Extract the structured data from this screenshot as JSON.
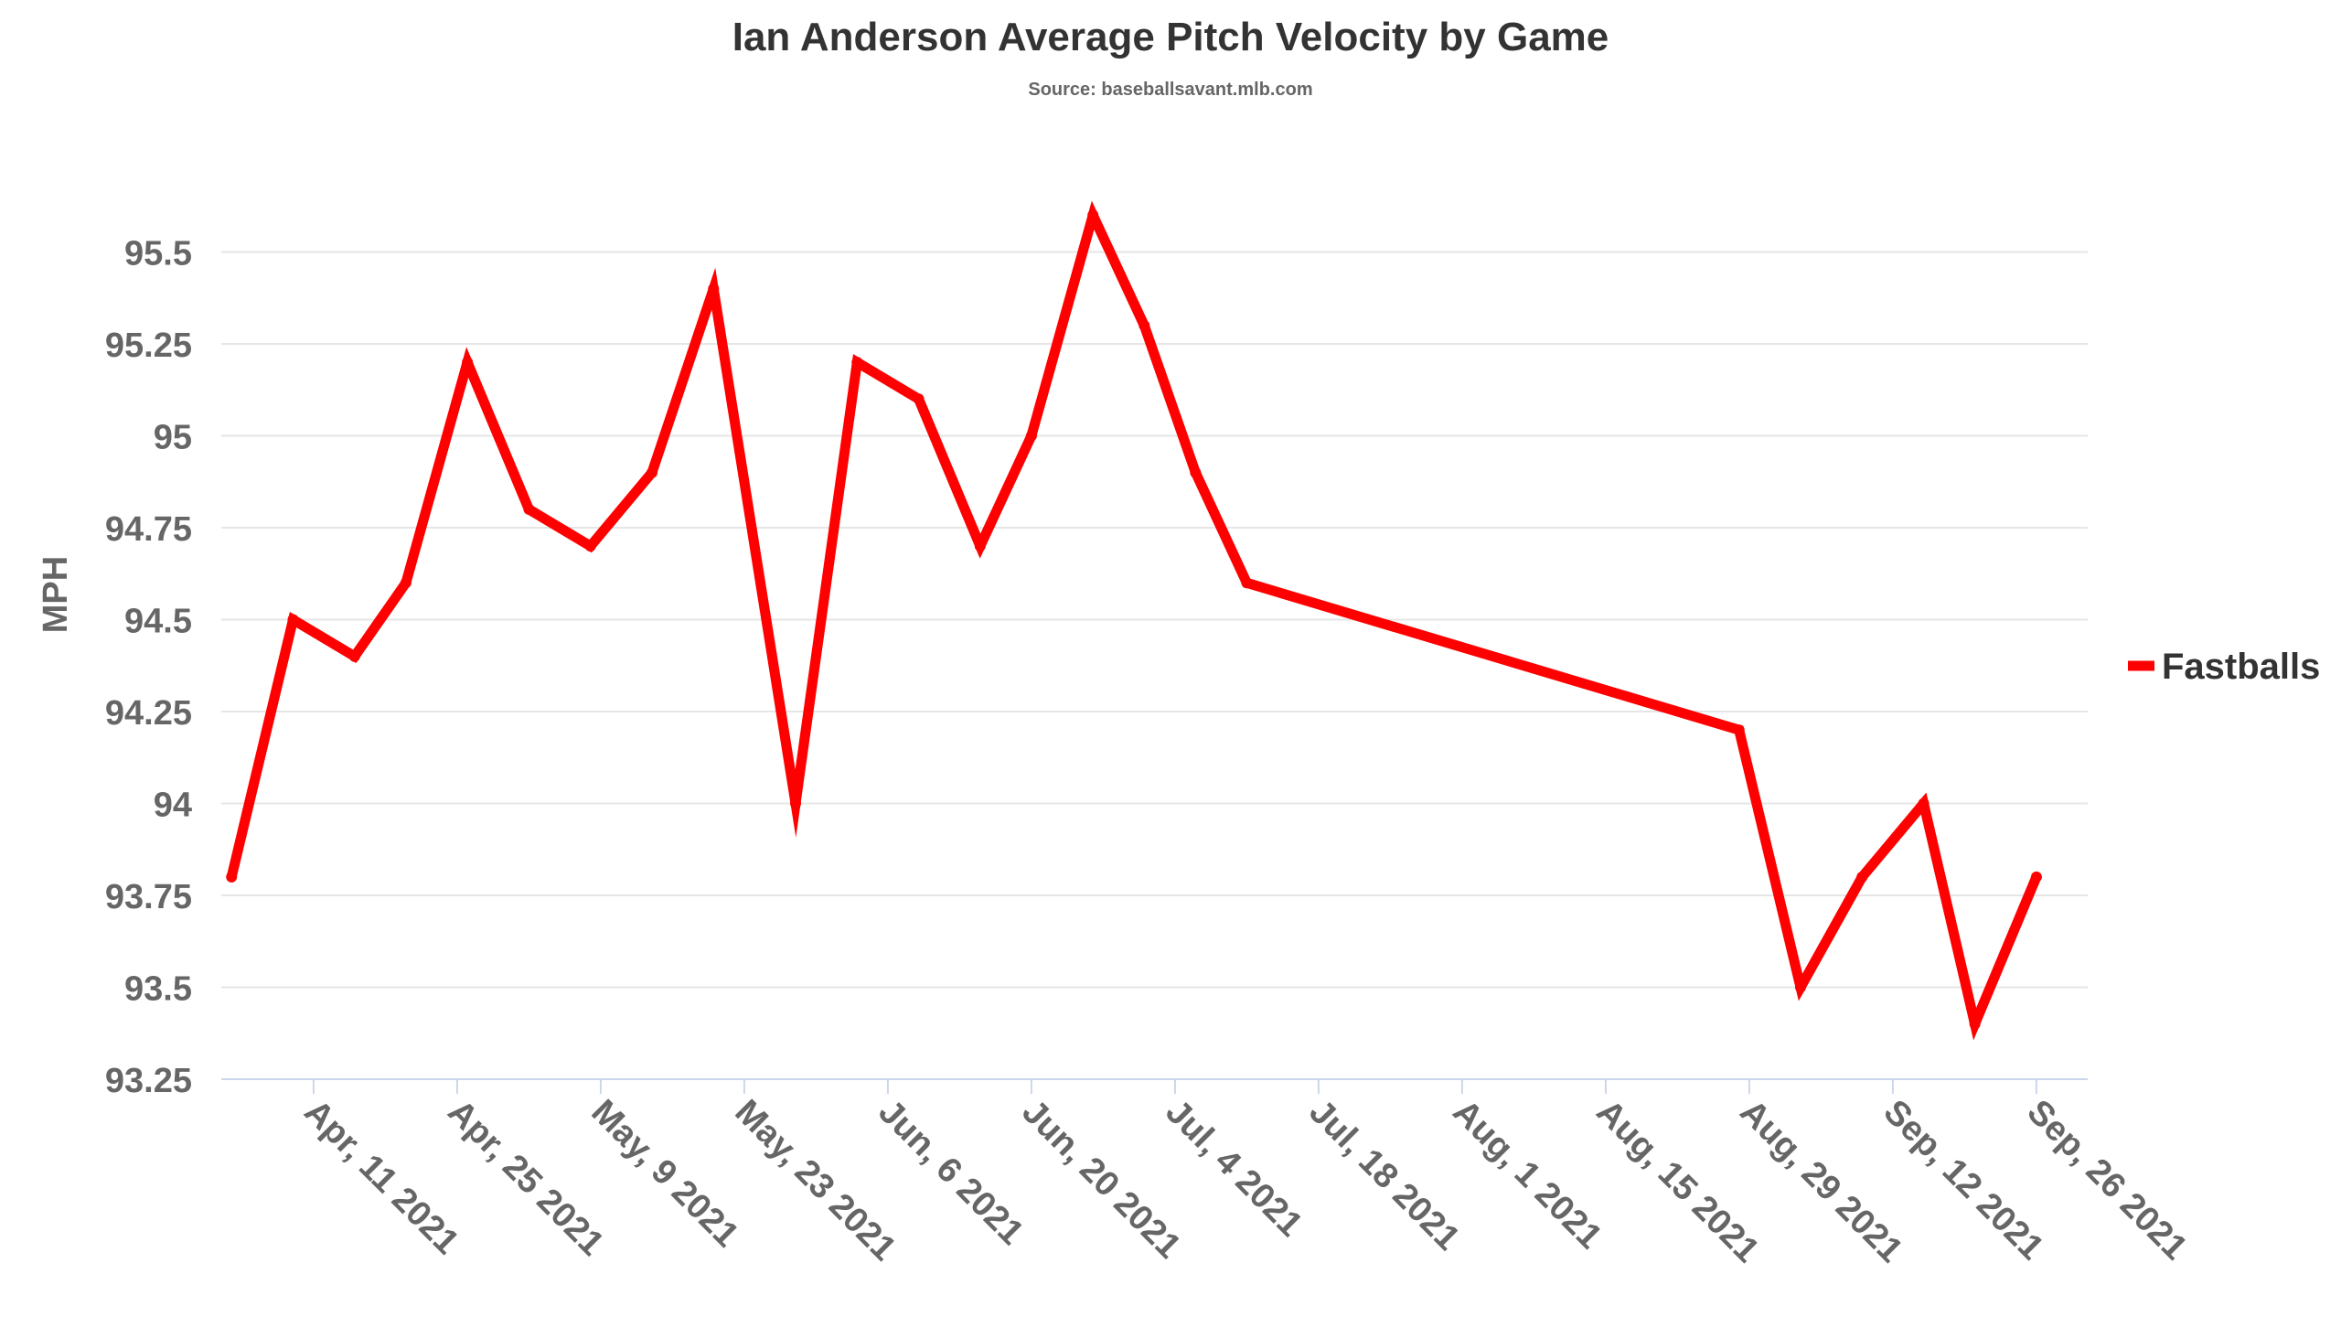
{
  "chart_data": {
    "type": "line",
    "title": "Ian Anderson Average Pitch Velocity by Game",
    "subtitle": "Source: baseballsavant.mlb.com",
    "xlabel": "",
    "ylabel": "MPH",
    "ylim": [
      93.25,
      95.75
    ],
    "yticks": [
      93.25,
      93.5,
      93.75,
      94,
      94.25,
      94.5,
      94.75,
      95,
      95.25,
      95.5
    ],
    "ytick_labels": [
      "93.25",
      "93.5",
      "93.75",
      "94",
      "94.25",
      "94.5",
      "94.75",
      "95",
      "95.25",
      "95.5"
    ],
    "xlim": [
      "2021-04-02",
      "2021-10-01"
    ],
    "xticks": [
      "2021-04-11",
      "2021-04-25",
      "2021-05-09",
      "2021-05-23",
      "2021-06-06",
      "2021-06-20",
      "2021-07-04",
      "2021-07-18",
      "2021-08-01",
      "2021-08-15",
      "2021-08-29",
      "2021-09-12",
      "2021-09-26"
    ],
    "xtick_labels": [
      "Apr, 11 2021",
      "Apr, 25 2021",
      "May, 9 2021",
      "May, 23 2021",
      "Jun, 6 2021",
      "Jun, 20 2021",
      "Jul, 4 2021",
      "Jul, 18 2021",
      "Aug, 1 2021",
      "Aug, 15 2021",
      "Aug, 29 2021",
      "Sep, 12 2021",
      "Sep, 26 2021"
    ],
    "grid": true,
    "legend_position": "right",
    "series": [
      {
        "name": "Fastballs",
        "color": "#ff0000",
        "x": [
          "2021-04-03",
          "2021-04-09",
          "2021-04-15",
          "2021-04-20",
          "2021-04-26",
          "2021-05-02",
          "2021-05-08",
          "2021-05-14",
          "2021-05-20",
          "2021-05-28",
          "2021-06-03",
          "2021-06-09",
          "2021-06-15",
          "2021-06-20",
          "2021-06-26",
          "2021-07-01",
          "2021-07-06",
          "2021-07-11",
          "2021-08-28",
          "2021-09-03",
          "2021-09-09",
          "2021-09-15",
          "2021-09-20",
          "2021-09-26"
        ],
        "y": [
          93.8,
          94.5,
          94.4,
          94.6,
          95.2,
          94.8,
          94.7,
          94.9,
          95.4,
          94.0,
          95.2,
          95.1,
          94.7,
          95.0,
          95.6,
          95.3,
          94.9,
          94.6,
          94.2,
          93.5,
          93.8,
          94.0,
          93.4,
          93.8
        ]
      }
    ]
  }
}
